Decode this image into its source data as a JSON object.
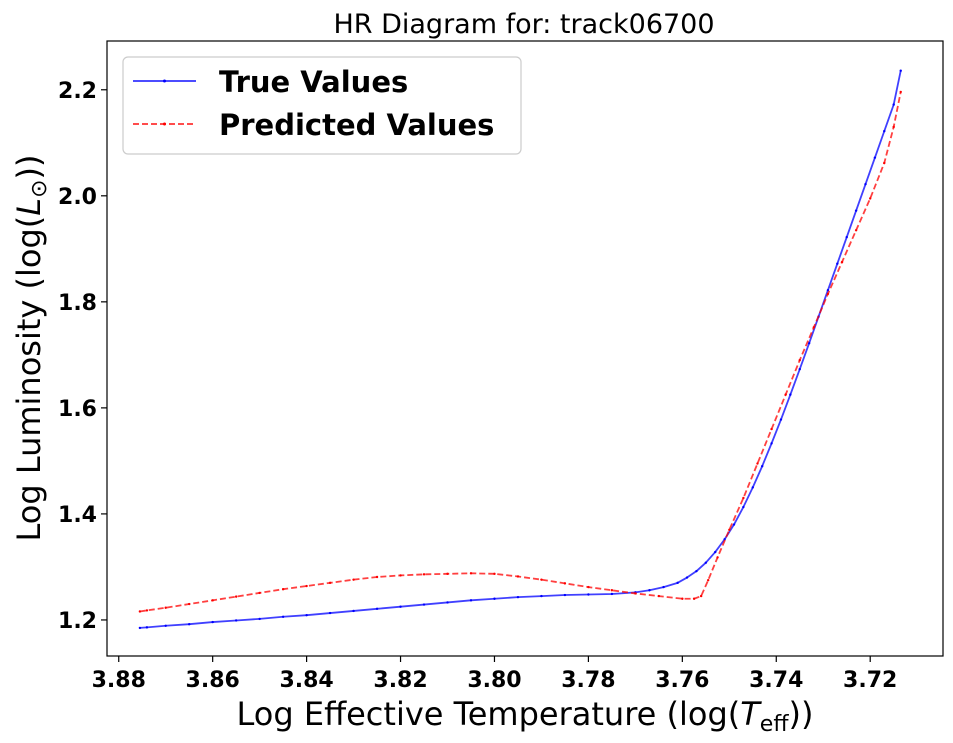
{
  "chart_data": {
    "type": "line",
    "title": "HR Diagram for: track06700",
    "xlabel": "Log Effective Temperature (log(T_eff))",
    "ylabel": "Log Luminosity (log(L_⊙))",
    "x_inverted": true,
    "xlim": [
      3.8825,
      3.7045
    ],
    "ylim": [
      1.132,
      2.292
    ],
    "x_ticks": [
      3.88,
      3.86,
      3.84,
      3.82,
      3.8,
      3.78,
      3.76,
      3.74,
      3.72
    ],
    "x_tick_labels": [
      "3.88",
      "3.86",
      "3.84",
      "3.82",
      "3.80",
      "3.78",
      "3.76",
      "3.74",
      "3.72"
    ],
    "y_ticks": [
      1.2,
      1.4,
      1.6,
      1.8,
      2.0,
      2.2
    ],
    "y_tick_labels": [
      "1.2",
      "1.4",
      "1.6",
      "1.8",
      "2.0",
      "2.2"
    ],
    "grid": false,
    "legend_position": "top-left",
    "series": [
      {
        "name": "True Values",
        "color": "#0000ff",
        "style": "solid",
        "marker": "dot",
        "x": [
          3.8755,
          3.874,
          3.87,
          3.865,
          3.86,
          3.855,
          3.85,
          3.845,
          3.84,
          3.835,
          3.83,
          3.825,
          3.82,
          3.815,
          3.81,
          3.805,
          3.8,
          3.795,
          3.79,
          3.785,
          3.78,
          3.775,
          3.77,
          3.767,
          3.764,
          3.761,
          3.759,
          3.757,
          3.755,
          3.753,
          3.751,
          3.749,
          3.747,
          3.745,
          3.743,
          3.741,
          3.739,
          3.737,
          3.735,
          3.733,
          3.731,
          3.729,
          3.727,
          3.725,
          3.723,
          3.721,
          3.719,
          3.717,
          3.715,
          3.7135
        ],
        "y": [
          1.185,
          1.186,
          1.189,
          1.192,
          1.196,
          1.199,
          1.202,
          1.206,
          1.209,
          1.213,
          1.217,
          1.221,
          1.225,
          1.229,
          1.233,
          1.237,
          1.24,
          1.243,
          1.245,
          1.247,
          1.248,
          1.249,
          1.252,
          1.256,
          1.262,
          1.27,
          1.28,
          1.292,
          1.308,
          1.328,
          1.352,
          1.38,
          1.413,
          1.45,
          1.49,
          1.533,
          1.578,
          1.625,
          1.673,
          1.722,
          1.772,
          1.822,
          1.872,
          1.922,
          1.972,
          2.022,
          2.072,
          2.122,
          2.172,
          2.236
        ]
      },
      {
        "name": "Predicted Values",
        "color": "#ff0000",
        "style": "dashed",
        "marker": "dot",
        "x": [
          3.8755,
          3.874,
          3.87,
          3.865,
          3.86,
          3.855,
          3.85,
          3.845,
          3.84,
          3.835,
          3.83,
          3.825,
          3.82,
          3.815,
          3.81,
          3.805,
          3.8,
          3.795,
          3.79,
          3.785,
          3.78,
          3.775,
          3.77,
          3.765,
          3.76,
          3.7575,
          3.756,
          3.7545,
          3.7525,
          3.75,
          3.747,
          3.744,
          3.741,
          3.738,
          3.735,
          3.732,
          3.729,
          3.726,
          3.723,
          3.72,
          3.717,
          3.715,
          3.7135
        ],
        "y": [
          1.216,
          1.218,
          1.223,
          1.23,
          1.237,
          1.244,
          1.251,
          1.258,
          1.264,
          1.27,
          1.276,
          1.281,
          1.284,
          1.286,
          1.287,
          1.288,
          1.287,
          1.282,
          1.276,
          1.269,
          1.262,
          1.256,
          1.25,
          1.245,
          1.24,
          1.24,
          1.245,
          1.275,
          1.318,
          1.37,
          1.43,
          1.495,
          1.56,
          1.625,
          1.69,
          1.752,
          1.815,
          1.875,
          1.935,
          1.995,
          2.062,
          2.13,
          2.196
        ]
      }
    ]
  }
}
